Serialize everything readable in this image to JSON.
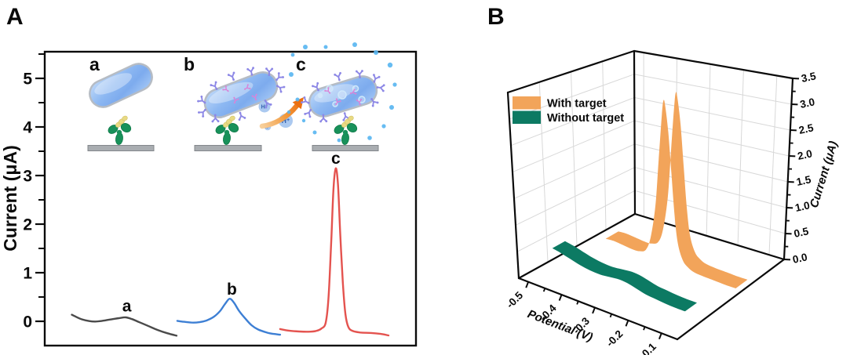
{
  "panels": {
    "a_label": "A",
    "b_label": "B"
  },
  "panel_a": {
    "ylabel": "Current (μA)",
    "schematic": {
      "step_labels": [
        "a",
        "b",
        "c"
      ],
      "h_plus": [
        "H⁺",
        "H⁺",
        "H⁺"
      ]
    }
  },
  "panel_b": {
    "xlabel": "Potential (V)",
    "zlabel": "Current (μA)",
    "legend": [
      {
        "label": "With target",
        "color": "#f2a45a"
      },
      {
        "label": "Without target",
        "color": "#0c7a63"
      }
    ]
  },
  "chart_data": [
    {
      "panel": "A",
      "type": "line",
      "title": "",
      "xlabel": "",
      "ylabel": "Current (μA)",
      "ylim": [
        -0.5,
        5.55
      ],
      "yticks": [
        0,
        1,
        2,
        3,
        4,
        5
      ],
      "xticks": [],
      "x_unit": "fraction-of-axis-width",
      "series": [
        {
          "name": "a",
          "color": "#4a4a4a",
          "label_at": [
            0.221,
            0.2
          ],
          "points": [
            [
              0.073,
              0.135
            ],
            [
              0.085,
              0.09
            ],
            [
              0.1,
              0.04
            ],
            [
              0.12,
              0.005
            ],
            [
              0.137,
              -0.005
            ],
            [
              0.155,
              0.01
            ],
            [
              0.175,
              0.035
            ],
            [
              0.2,
              0.065
            ],
            [
              0.218,
              0.08
            ],
            [
              0.235,
              0.045
            ],
            [
              0.255,
              -0.02
            ],
            [
              0.28,
              -0.1
            ],
            [
              0.305,
              -0.18
            ],
            [
              0.33,
              -0.245
            ],
            [
              0.355,
              -0.295
            ]
          ]
        },
        {
          "name": "b",
          "color": "#3d7fd4",
          "label_at": [
            0.504,
            0.55
          ],
          "points": [
            [
              0.357,
              0.01
            ],
            [
              0.375,
              -0.01
            ],
            [
              0.395,
              -0.025
            ],
            [
              0.415,
              -0.02
            ],
            [
              0.435,
              0.015
            ],
            [
              0.455,
              0.09
            ],
            [
              0.472,
              0.21
            ],
            [
              0.485,
              0.35
            ],
            [
              0.498,
              0.465
            ],
            [
              0.51,
              0.38
            ],
            [
              0.523,
              0.22
            ],
            [
              0.54,
              0.06
            ],
            [
              0.557,
              -0.08
            ],
            [
              0.575,
              -0.17
            ],
            [
              0.6,
              -0.235
            ],
            [
              0.617,
              -0.26
            ],
            [
              0.634,
              -0.275
            ]
          ]
        },
        {
          "name": "c",
          "color": "#e4534f",
          "label_at": [
            0.784,
            3.24
          ],
          "points": [
            [
              0.634,
              -0.16
            ],
            [
              0.66,
              -0.195
            ],
            [
              0.685,
              -0.21
            ],
            [
              0.71,
              -0.215
            ],
            [
              0.73,
              -0.2
            ],
            [
              0.745,
              -0.15
            ],
            [
              0.757,
              -0.02
            ],
            [
              0.765,
              0.55
            ],
            [
              0.772,
              1.7
            ],
            [
              0.778,
              2.75
            ],
            [
              0.784,
              3.15
            ],
            [
              0.79,
              2.8
            ],
            [
              0.796,
              1.8
            ],
            [
              0.803,
              0.8
            ],
            [
              0.81,
              0.15
            ],
            [
              0.818,
              -0.12
            ],
            [
              0.83,
              -0.2
            ],
            [
              0.85,
              -0.23
            ],
            [
              0.88,
              -0.24
            ],
            [
              0.905,
              -0.26
            ],
            [
              0.926,
              -0.29
            ]
          ]
        }
      ]
    },
    {
      "panel": "B",
      "type": "3d-ribbon",
      "xlabel": "Potential (V)",
      "zlabel": "Current (μA)",
      "xticks": [
        -0.5,
        -0.4,
        -0.3,
        -0.2,
        -0.1
      ],
      "zticks": [
        "0.0",
        "0.5",
        "1.0",
        "1.5",
        "2.0",
        "2.5",
        "3.0",
        "3.5"
      ],
      "zlim": [
        0,
        3.5
      ],
      "legend_position": "top-left",
      "series": [
        {
          "name": "With target",
          "color": "#f2a45a",
          "depth": 0.6,
          "points": [
            [
              -0.475,
              0.13
            ],
            [
              -0.45,
              0.14
            ],
            [
              -0.42,
              0.12
            ],
            [
              -0.39,
              0.1
            ],
            [
              -0.37,
              0.11
            ],
            [
              -0.35,
              0.18
            ],
            [
              -0.335,
              0.45
            ],
            [
              -0.32,
              1.1
            ],
            [
              -0.31,
              2.0
            ],
            [
              -0.3,
              2.9
            ],
            [
              -0.295,
              3.18
            ],
            [
              -0.29,
              3.1
            ],
            [
              -0.28,
              2.6
            ],
            [
              -0.27,
              1.8
            ],
            [
              -0.26,
              1.0
            ],
            [
              -0.25,
              0.5
            ],
            [
              -0.235,
              0.22
            ],
            [
              -0.22,
              0.12
            ],
            [
              -0.2,
              0.06
            ],
            [
              -0.17,
              0.04
            ],
            [
              -0.13,
              0.03
            ],
            [
              -0.1,
              0.02
            ],
            [
              -0.07,
              0.02
            ]
          ]
        },
        {
          "name": "Without target",
          "color": "#0c7a63",
          "depth": 0.25,
          "points": [
            [
              -0.515,
              0.3
            ],
            [
              -0.49,
              0.27
            ],
            [
              -0.46,
              0.22
            ],
            [
              -0.43,
              0.17
            ],
            [
              -0.4,
              0.14
            ],
            [
              -0.37,
              0.13
            ],
            [
              -0.34,
              0.15
            ],
            [
              -0.31,
              0.17
            ],
            [
              -0.28,
              0.15
            ],
            [
              -0.255,
              0.11
            ],
            [
              -0.23,
              0.07
            ],
            [
              -0.2,
              0.05
            ],
            [
              -0.17,
              0.03
            ],
            [
              -0.14,
              0.02
            ],
            [
              -0.11,
              0.02
            ]
          ]
        }
      ]
    }
  ]
}
